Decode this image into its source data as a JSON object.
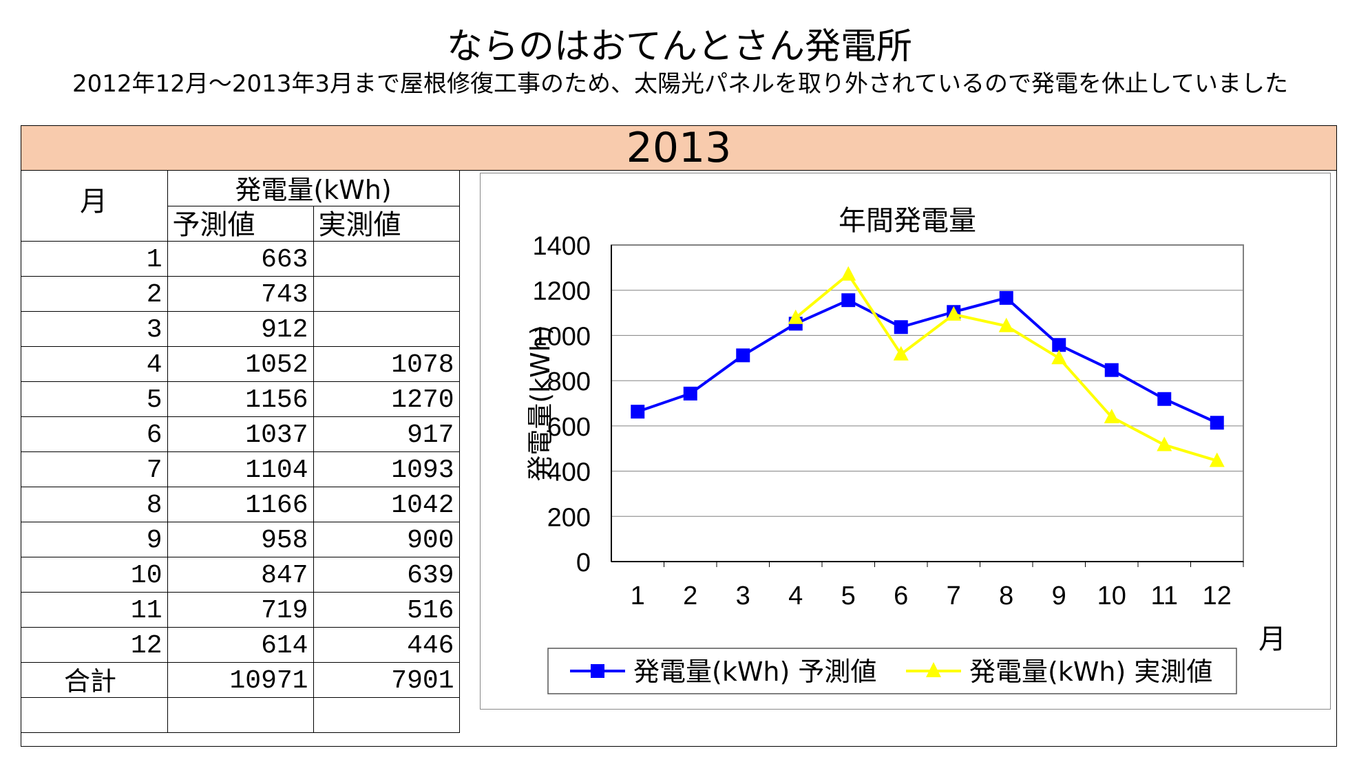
{
  "page": {
    "title": "ならのはおてんとさん発電所",
    "subtitle": "2012年12月～2013年3月まで屋根修復工事のため、太陽光パネルを取り外されているので発電を休止していました",
    "year": "2013"
  },
  "table": {
    "month_header": "月",
    "group_header": "発電量(kWh)",
    "col_forecast": "予測値",
    "col_actual": "実測値",
    "rows": [
      {
        "month": "1",
        "forecast": "663",
        "actual": ""
      },
      {
        "month": "2",
        "forecast": "743",
        "actual": ""
      },
      {
        "month": "3",
        "forecast": "912",
        "actual": ""
      },
      {
        "month": "4",
        "forecast": "1052",
        "actual": "1078"
      },
      {
        "month": "5",
        "forecast": "1156",
        "actual": "1270"
      },
      {
        "month": "6",
        "forecast": "1037",
        "actual": "917"
      },
      {
        "month": "7",
        "forecast": "1104",
        "actual": "1093"
      },
      {
        "month": "8",
        "forecast": "1166",
        "actual": "1042"
      },
      {
        "month": "9",
        "forecast": "958",
        "actual": "900"
      },
      {
        "month": "10",
        "forecast": "847",
        "actual": "639"
      },
      {
        "month": "11",
        "forecast": "719",
        "actual": "516"
      },
      {
        "month": "12",
        "forecast": "614",
        "actual": "446"
      }
    ],
    "total_label": "合計",
    "total_forecast": "10971",
    "total_actual": "7901"
  },
  "chart_data": {
    "type": "line",
    "title": "年間発電量",
    "xlabel": "月",
    "ylabel": "発電量(kWh)",
    "categories": [
      "1",
      "2",
      "3",
      "4",
      "5",
      "6",
      "7",
      "8",
      "9",
      "10",
      "11",
      "12"
    ],
    "ylim": [
      0,
      1400
    ],
    "yticks": [
      0,
      200,
      400,
      600,
      800,
      1000,
      1200,
      1400
    ],
    "grid": true,
    "legend_position": "bottom",
    "series": [
      {
        "name": "発電量(kWh) 予測値",
        "color": "#0000ff",
        "marker": "square",
        "values": [
          663,
          743,
          912,
          1052,
          1156,
          1037,
          1104,
          1166,
          958,
          847,
          719,
          614
        ]
      },
      {
        "name": "発電量(kWh) 実測値",
        "color": "#ffff00",
        "marker": "triangle",
        "values": [
          null,
          null,
          null,
          1078,
          1270,
          917,
          1093,
          1042,
          900,
          639,
          516,
          446
        ]
      }
    ]
  }
}
